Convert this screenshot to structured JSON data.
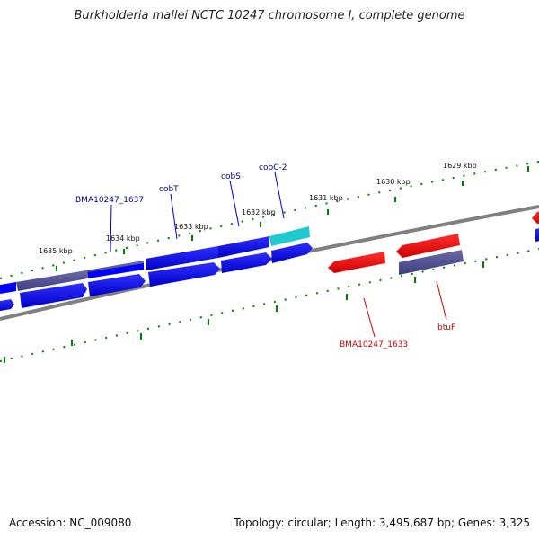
{
  "title": "Burkholderia mallei NCTC 10247 chromosome I, complete genome",
  "footer": {
    "accession_label": "Accession:",
    "accession": "NC_009080",
    "topology_text": "Topology: circular; Length: 3,495,687 bp; Genes: 3,325"
  },
  "colors": {
    "forward_gene": "#0000ff",
    "reverse_gene": "#ff0000",
    "cds_purple": "#5a5a9a",
    "cds_cyan": "#20c8d0",
    "backbone": "#808080",
    "ticks": "#008000",
    "label_forward": "#00008b",
    "label_reverse": "#cc0000"
  },
  "scale_labels": [
    "1635 kbp",
    "1634 kbp",
    "1633 kbp",
    "1632 kbp",
    "1631 kbp",
    "1630 kbp",
    "1629 kbp"
  ],
  "gene_labels": {
    "forward": [
      "BMA10247_1637",
      "cobT",
      "cobS",
      "cobC-2"
    ],
    "reverse": [
      "BMA10247_1633",
      "btuF"
    ]
  }
}
